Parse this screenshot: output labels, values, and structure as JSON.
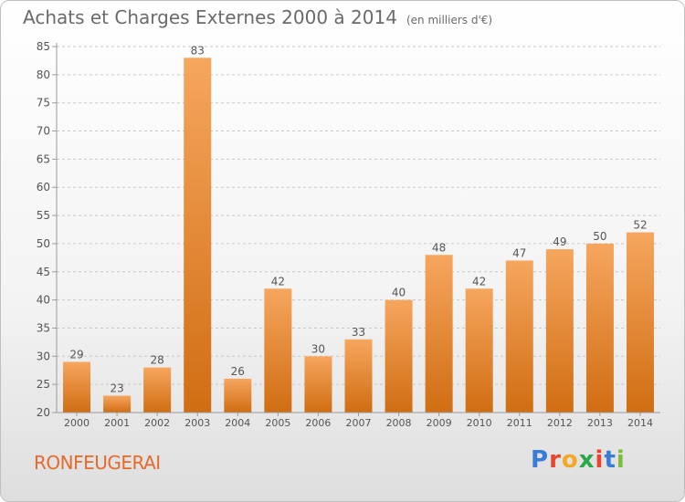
{
  "title": "Achats et Charges Externes 2000 à 2014",
  "unit_note": "(en milliers d'€)",
  "commune": "RONFEUGERAI",
  "logo": {
    "text": "Proxiti",
    "colors": [
      "#3a7bd5",
      "#e8452c",
      "#f5a623",
      "#2aa84a",
      "#e8452c",
      "#3a7bd5",
      "#7bbf3a"
    ]
  },
  "colors": {
    "bar_top": "#f6a65e",
    "bar_bottom": "#d06d12",
    "axis": "#9a9a9a",
    "grid": "#c8c8c8",
    "text": "#555555"
  },
  "chart_data": {
    "type": "bar",
    "title": "Achats et Charges Externes 2000 à 2014",
    "subtitle": "(en milliers d'€)",
    "xlabel": "",
    "ylabel": "",
    "categories": [
      "2000",
      "2001",
      "2002",
      "2003",
      "2004",
      "2005",
      "2006",
      "2007",
      "2008",
      "2009",
      "2010",
      "2011",
      "2012",
      "2013",
      "2014"
    ],
    "values": [
      29,
      23,
      28,
      83,
      26,
      42,
      30,
      33,
      40,
      48,
      42,
      47,
      49,
      50,
      52
    ],
    "ylim": [
      20,
      85
    ],
    "yticks": [
      20,
      25,
      30,
      35,
      40,
      45,
      50,
      55,
      60,
      65,
      70,
      75,
      80,
      85
    ],
    "grid": "horizontal dashed",
    "legend": "none"
  }
}
